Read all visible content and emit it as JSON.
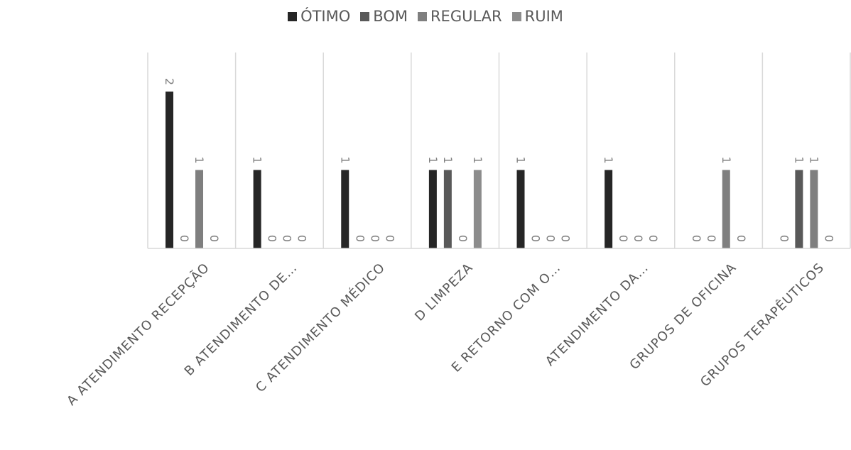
{
  "chart_data": {
    "type": "bar",
    "title": "",
    "xlabel": "",
    "ylabel": "",
    "ylim": [
      0,
      2.2
    ],
    "grid": "vertical category separators",
    "legend_position": "top",
    "categories": [
      "A ATENDIMENTO RECEPÇÃO",
      "B ATENDIMENTO DE…",
      "C ATENDIMENTO MÉDICO",
      "D LIMPEZA",
      "E RETORNO COM O…",
      "ATENDIMENTO DA…",
      "GRUPOS DE OFICINA",
      "GRUPOS TERAPÊUTICOS"
    ],
    "series": [
      {
        "name": "ÓTIMO",
        "color": "#262626",
        "values": [
          2,
          1,
          1,
          1,
          1,
          1,
          0,
          0
        ]
      },
      {
        "name": "BOM",
        "color": "#595959",
        "values": [
          0,
          0,
          0,
          1,
          0,
          0,
          0,
          1
        ]
      },
      {
        "name": "REGULAR",
        "color": "#7f7f7f",
        "values": [
          1,
          0,
          0,
          0,
          0,
          0,
          1,
          1
        ]
      },
      {
        "name": "RUIM",
        "color": "#8c8c8c",
        "values": [
          0,
          0,
          0,
          1,
          0,
          0,
          0,
          0
        ]
      }
    ]
  }
}
